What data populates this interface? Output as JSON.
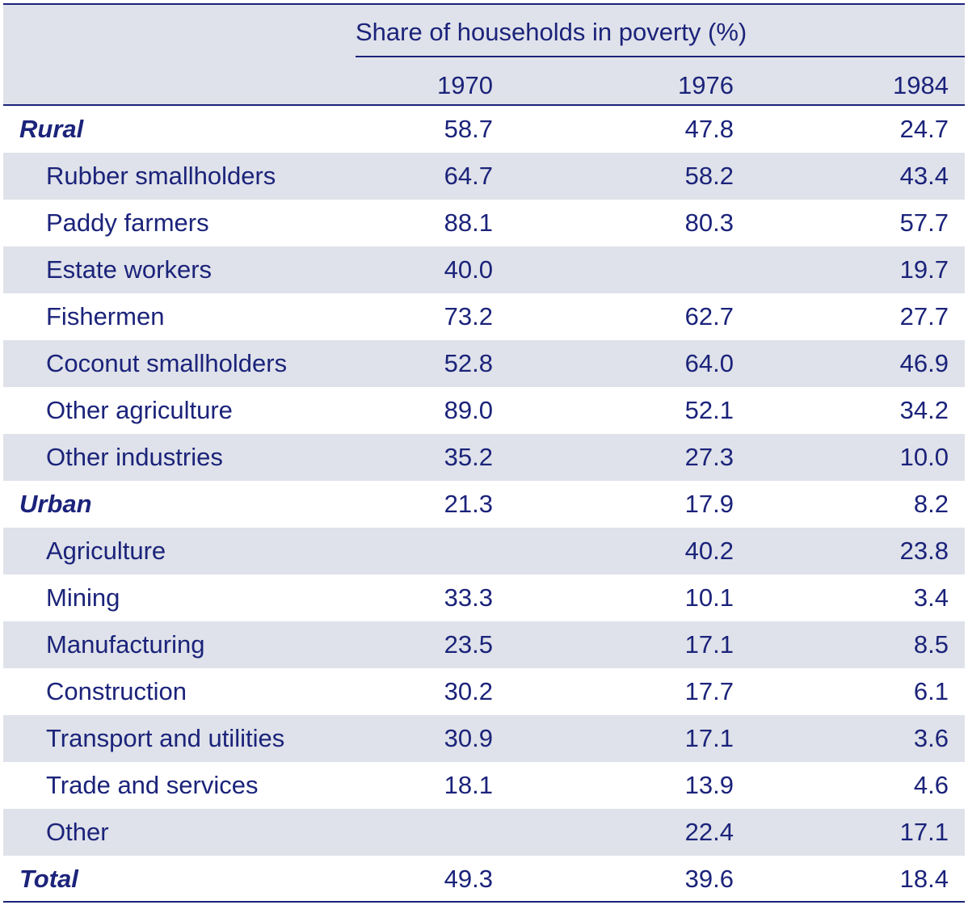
{
  "table": {
    "group_header": "Share of households in poverty (%)",
    "columns": [
      "1970",
      "1976",
      "1984"
    ],
    "rows": [
      {
        "label": "Rural",
        "group": true,
        "v1970": "58.7",
        "v1976": "47.8",
        "v1984": "24.7"
      },
      {
        "label": "Rubber smallholders",
        "group": false,
        "v1970": "64.7",
        "v1976": "58.2",
        "v1984": "43.4"
      },
      {
        "label": "Paddy farmers",
        "group": false,
        "v1970": "88.1",
        "v1976": "80.3",
        "v1984": "57.7"
      },
      {
        "label": "Estate workers",
        "group": false,
        "v1970": "40.0",
        "v1976": "",
        "v1984": "19.7"
      },
      {
        "label": "Fishermen",
        "group": false,
        "v1970": "73.2",
        "v1976": "62.7",
        "v1984": "27.7"
      },
      {
        "label": "Coconut smallholders",
        "group": false,
        "v1970": "52.8",
        "v1976": "64.0",
        "v1984": "46.9"
      },
      {
        "label": "Other agriculture",
        "group": false,
        "v1970": "89.0",
        "v1976": "52.1",
        "v1984": "34.2"
      },
      {
        "label": "Other industries",
        "group": false,
        "v1970": "35.2",
        "v1976": "27.3",
        "v1984": "10.0"
      },
      {
        "label": "Urban",
        "group": true,
        "v1970": "21.3",
        "v1976": "17.9",
        "v1984": "8.2"
      },
      {
        "label": "Agriculture",
        "group": false,
        "v1970": "",
        "v1976": "40.2",
        "v1984": "23.8"
      },
      {
        "label": "Mining",
        "group": false,
        "v1970": "33.3",
        "v1976": "10.1",
        "v1984": "3.4"
      },
      {
        "label": "Manufacturing",
        "group": false,
        "v1970": "23.5",
        "v1976": "17.1",
        "v1984": "8.5"
      },
      {
        "label": "Construction",
        "group": false,
        "v1970": "30.2",
        "v1976": "17.7",
        "v1984": "6.1"
      },
      {
        "label": "Transport and utilities",
        "group": false,
        "v1970": "30.9",
        "v1976": "17.1",
        "v1984": "3.6"
      },
      {
        "label": "Trade and services",
        "group": false,
        "v1970": "18.1",
        "v1976": "13.9",
        "v1984": "4.6"
      },
      {
        "label": "Other",
        "group": false,
        "v1970": "",
        "v1976": "22.4",
        "v1984": "17.1"
      },
      {
        "label": "Total",
        "group": true,
        "v1970": "49.3",
        "v1976": "39.6",
        "v1984": "18.4"
      }
    ]
  },
  "colors": {
    "text": "#1b237a",
    "shade": "#dfe2ea",
    "rule": "#1b237a"
  }
}
